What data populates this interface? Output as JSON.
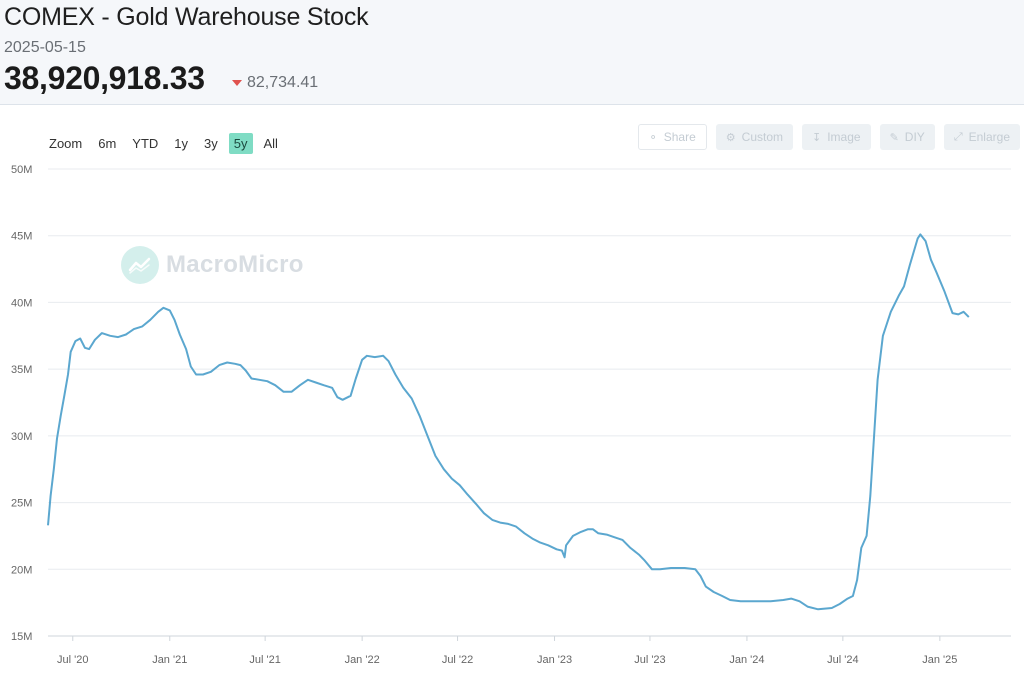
{
  "header": {
    "title": "COMEX - Gold Warehouse Stock",
    "date": "2025-05-15",
    "value": "38,920,918.33",
    "change": "82,734.41",
    "change_direction": "down",
    "change_color": "#e0524e"
  },
  "range_selector": {
    "label": "Zoom",
    "options": [
      "6m",
      "YTD",
      "1y",
      "3y",
      "5y",
      "All"
    ],
    "active": "5y",
    "active_color": "#7fdcc4"
  },
  "toolbar": [
    {
      "label": "Share",
      "icon": "share-icon"
    },
    {
      "label": "Custom",
      "icon": "gear-icon"
    },
    {
      "label": "Image",
      "icon": "download-icon"
    },
    {
      "label": "DIY",
      "icon": "pencil-icon"
    },
    {
      "label": "Enlarge",
      "icon": "expand-icon"
    }
  ],
  "watermark": {
    "text": "MacroMicro",
    "icon": "macromicro-logo-icon"
  },
  "chart_data": {
    "type": "line",
    "title": "",
    "xlabel": "",
    "ylabel": "",
    "line_color": "#5ba7cf",
    "grid": true,
    "ylim": [
      15000000,
      50000000
    ],
    "xlim": [
      "2020-05-15",
      "2025-05-16"
    ],
    "y_ticks": [
      15000000,
      20000000,
      25000000,
      30000000,
      35000000,
      40000000,
      45000000,
      50000000
    ],
    "y_tick_labels": [
      "15M",
      "20M",
      "25M",
      "30M",
      "35M",
      "40M",
      "45M",
      "50M"
    ],
    "x_ticks": [
      "2020-07-01",
      "2021-01-01",
      "2021-07-01",
      "2022-01-01",
      "2022-07-01",
      "2023-01-01",
      "2023-07-01",
      "2024-01-01",
      "2024-07-01",
      "2025-01-01"
    ],
    "x_tick_labels": [
      "Jul '20",
      "Jan '21",
      "Jul '21",
      "Jan '22",
      "Jul '22",
      "Jan '23",
      "Jul '23",
      "Jan '24",
      "Jul '24",
      "Jan '25"
    ],
    "series": [
      {
        "points": [
          [
            "2020-05-15",
            23.3
          ],
          [
            "2020-05-20",
            25.5
          ],
          [
            "2020-05-26",
            27.5
          ],
          [
            "2020-06-01",
            29.8
          ],
          [
            "2020-06-08",
            31.5
          ],
          [
            "2020-06-15",
            33.0
          ],
          [
            "2020-06-22",
            34.6
          ],
          [
            "2020-06-27",
            36.3
          ],
          [
            "2020-07-06",
            37.1
          ],
          [
            "2020-07-15",
            37.3
          ],
          [
            "2020-07-24",
            36.6
          ],
          [
            "2020-08-01",
            36.5
          ],
          [
            "2020-08-12",
            37.2
          ],
          [
            "2020-08-25",
            37.7
          ],
          [
            "2020-09-10",
            37.5
          ],
          [
            "2020-09-25",
            37.4
          ],
          [
            "2020-10-10",
            37.6
          ],
          [
            "2020-10-25",
            38.0
          ],
          [
            "2020-11-10",
            38.2
          ],
          [
            "2020-11-25",
            38.7
          ],
          [
            "2020-12-10",
            39.3
          ],
          [
            "2020-12-20",
            39.6
          ],
          [
            "2021-01-01",
            39.4
          ],
          [
            "2021-01-10",
            38.7
          ],
          [
            "2021-01-20",
            37.6
          ],
          [
            "2021-02-01",
            36.5
          ],
          [
            "2021-02-10",
            35.2
          ],
          [
            "2021-02-20",
            34.6
          ],
          [
            "2021-03-05",
            34.6
          ],
          [
            "2021-03-20",
            34.8
          ],
          [
            "2021-04-05",
            35.3
          ],
          [
            "2021-04-20",
            35.5
          ],
          [
            "2021-05-05",
            35.4
          ],
          [
            "2021-05-15",
            35.3
          ],
          [
            "2021-05-25",
            34.9
          ],
          [
            "2021-06-05",
            34.3
          ],
          [
            "2021-06-20",
            34.2
          ],
          [
            "2021-07-05",
            34.1
          ],
          [
            "2021-07-20",
            33.8
          ],
          [
            "2021-08-05",
            33.3
          ],
          [
            "2021-08-20",
            33.3
          ],
          [
            "2021-09-05",
            33.8
          ],
          [
            "2021-09-20",
            34.2
          ],
          [
            "2021-10-05",
            34.0
          ],
          [
            "2021-10-20",
            33.8
          ],
          [
            "2021-11-05",
            33.6
          ],
          [
            "2021-11-15",
            32.9
          ],
          [
            "2021-11-25",
            32.7
          ],
          [
            "2021-12-10",
            33.0
          ],
          [
            "2021-12-20",
            34.3
          ],
          [
            "2022-01-01",
            35.7
          ],
          [
            "2022-01-10",
            36.0
          ],
          [
            "2022-01-25",
            35.9
          ],
          [
            "2022-02-10",
            36.0
          ],
          [
            "2022-02-20",
            35.6
          ],
          [
            "2022-03-05",
            34.6
          ],
          [
            "2022-03-20",
            33.6
          ],
          [
            "2022-04-05",
            32.8
          ],
          [
            "2022-04-20",
            31.5
          ],
          [
            "2022-05-05",
            30.0
          ],
          [
            "2022-05-20",
            28.5
          ],
          [
            "2022-06-05",
            27.5
          ],
          [
            "2022-06-20",
            26.8
          ],
          [
            "2022-07-05",
            26.3
          ],
          [
            "2022-07-20",
            25.6
          ],
          [
            "2022-08-05",
            24.9
          ],
          [
            "2022-08-20",
            24.2
          ],
          [
            "2022-09-05",
            23.7
          ],
          [
            "2022-09-20",
            23.5
          ],
          [
            "2022-10-05",
            23.4
          ],
          [
            "2022-10-20",
            23.2
          ],
          [
            "2022-11-05",
            22.7
          ],
          [
            "2022-11-20",
            22.3
          ],
          [
            "2022-12-05",
            22.0
          ],
          [
            "2022-12-20",
            21.8
          ],
          [
            "2023-01-05",
            21.5
          ],
          [
            "2023-01-15",
            21.4
          ],
          [
            "2023-01-20",
            20.9
          ],
          [
            "2023-01-23",
            21.8
          ],
          [
            "2023-02-05",
            22.5
          ],
          [
            "2023-02-20",
            22.8
          ],
          [
            "2023-03-05",
            23.0
          ],
          [
            "2023-03-15",
            23.0
          ],
          [
            "2023-03-25",
            22.7
          ],
          [
            "2023-04-10",
            22.6
          ],
          [
            "2023-04-25",
            22.4
          ],
          [
            "2023-05-10",
            22.2
          ],
          [
            "2023-05-25",
            21.6
          ],
          [
            "2023-06-10",
            21.1
          ],
          [
            "2023-06-20",
            20.7
          ],
          [
            "2023-07-05",
            20.0
          ],
          [
            "2023-07-20",
            20.0
          ],
          [
            "2023-08-10",
            20.1
          ],
          [
            "2023-09-05",
            20.1
          ],
          [
            "2023-09-25",
            20.0
          ],
          [
            "2023-10-05",
            19.5
          ],
          [
            "2023-10-15",
            18.7
          ],
          [
            "2023-10-30",
            18.3
          ],
          [
            "2023-11-15",
            18.0
          ],
          [
            "2023-11-30",
            17.7
          ],
          [
            "2023-12-20",
            17.6
          ],
          [
            "2024-01-15",
            17.6
          ],
          [
            "2024-02-15",
            17.6
          ],
          [
            "2024-03-10",
            17.7
          ],
          [
            "2024-03-25",
            17.8
          ],
          [
            "2024-04-10",
            17.6
          ],
          [
            "2024-04-25",
            17.2
          ],
          [
            "2024-05-15",
            17.0
          ],
          [
            "2024-06-10",
            17.1
          ],
          [
            "2024-06-25",
            17.4
          ],
          [
            "2024-07-10",
            17.8
          ],
          [
            "2024-07-20",
            18.0
          ],
          [
            "2024-07-28",
            19.2
          ],
          [
            "2024-08-05",
            21.6
          ],
          [
            "2024-08-15",
            22.5
          ],
          [
            "2024-08-22",
            25.5
          ],
          [
            "2024-08-30",
            30.5
          ],
          [
            "2024-09-05",
            34.2
          ],
          [
            "2024-09-15",
            37.5
          ],
          [
            "2024-09-30",
            39.3
          ],
          [
            "2024-10-15",
            40.5
          ],
          [
            "2024-10-25",
            41.2
          ],
          [
            "2024-11-05",
            42.8
          ],
          [
            "2024-11-20",
            44.8
          ],
          [
            "2024-11-25",
            45.1
          ],
          [
            "2024-12-05",
            44.6
          ],
          [
            "2024-12-15",
            43.2
          ],
          [
            "2024-12-25",
            42.3
          ],
          [
            "2025-01-10",
            40.8
          ],
          [
            "2025-01-25",
            39.2
          ],
          [
            "2025-02-05",
            39.1
          ],
          [
            "2025-02-15",
            39.3
          ],
          [
            "2025-02-25",
            38.9
          ]
        ]
      }
    ]
  }
}
